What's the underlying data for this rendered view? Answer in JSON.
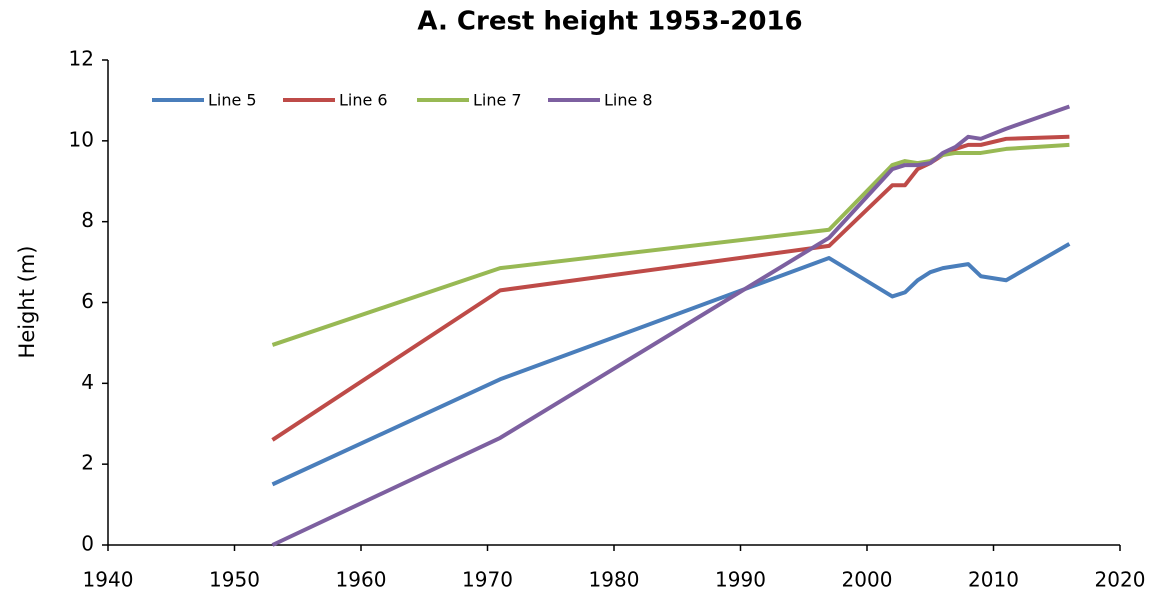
{
  "chart_data": {
    "type": "line",
    "title": "A. Crest height 1953-2016",
    "y_label": "Height (m)",
    "x": [
      1953,
      1971,
      1997,
      2002,
      2003,
      2004,
      2005,
      2006,
      2007,
      2008,
      2009,
      2011,
      2016
    ],
    "series": [
      {
        "name": "Line 5",
        "color": "#4a7ebb",
        "values": [
          1.5,
          4.1,
          7.1,
          6.15,
          6.25,
          6.55,
          6.75,
          6.85,
          6.9,
          6.95,
          6.65,
          6.55,
          7.45
        ]
      },
      {
        "name": "Line 6",
        "color": "#be4b48",
        "values": [
          2.6,
          6.3,
          7.4,
          8.9,
          8.9,
          9.3,
          9.45,
          9.65,
          9.8,
          9.9,
          9.9,
          10.05,
          10.1
        ]
      },
      {
        "name": "Line 7",
        "color": "#98b954",
        "values": [
          4.95,
          6.85,
          7.8,
          9.4,
          9.5,
          9.45,
          9.5,
          9.65,
          9.7,
          9.7,
          9.7,
          9.8,
          9.9
        ]
      },
      {
        "name": "Line 8",
        "color": "#7d60a0",
        "values": [
          0,
          2.65,
          7.6,
          9.3,
          9.4,
          9.4,
          9.45,
          9.7,
          9.85,
          10.1,
          10.05,
          10.3,
          10.85
        ]
      }
    ],
    "xlim": [
      1940,
      2020
    ],
    "xticks": [
      1940,
      1950,
      1960,
      1970,
      1980,
      1990,
      2000,
      2010,
      2020
    ],
    "ylim": [
      0,
      12
    ],
    "yticks": [
      0,
      2,
      4,
      6,
      8,
      10,
      12
    ],
    "grid": false,
    "legend": "top-left"
  }
}
